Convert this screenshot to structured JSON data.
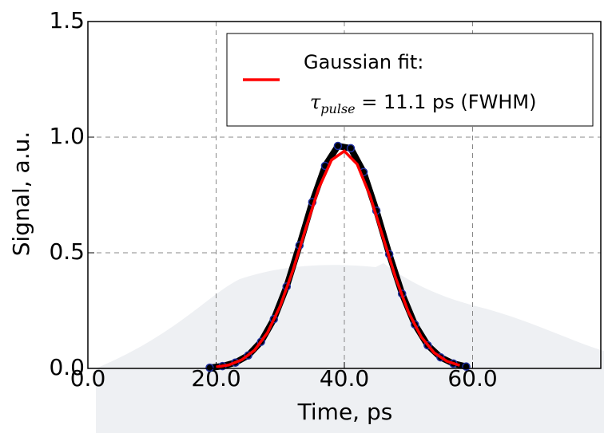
{
  "chart_data": {
    "type": "line",
    "xlabel": "Time, ps",
    "ylabel": "Signal, a.u.",
    "xlim": [
      0,
      80
    ],
    "ylim": [
      0,
      1.5
    ],
    "xticks": [
      {
        "value": 0,
        "label": "0.0"
      },
      {
        "value": 20,
        "label": "20.0"
      },
      {
        "value": 40,
        "label": "40.0"
      },
      {
        "value": 60,
        "label": "60.0"
      }
    ],
    "yticks": [
      {
        "value": 0,
        "label": "0.0"
      },
      {
        "value": 0.5,
        "label": "0.5"
      },
      {
        "value": 1,
        "label": "1.0"
      },
      {
        "value": 1.5,
        "label": "1.5"
      }
    ],
    "grid": true,
    "legend": "upper right",
    "series": [
      {
        "kind": "scatter",
        "color": "#000000",
        "edgecolor": "#1f2fa0",
        "x": [
          19,
          21,
          23,
          25,
          27,
          29,
          31,
          33,
          35,
          37,
          39,
          41,
          43,
          45,
          47,
          49,
          51,
          53,
          55,
          57,
          59
        ],
        "values": [
          0.003,
          0.01,
          0.025,
          0.056,
          0.115,
          0.213,
          0.354,
          0.532,
          0.719,
          0.876,
          0.962,
          0.952,
          0.849,
          0.682,
          0.494,
          0.323,
          0.19,
          0.1,
          0.048,
          0.021,
          0.008
        ]
      },
      {
        "kind": "line",
        "name": "Gaussian fit:",
        "color": "#ff0000",
        "x": [
          20,
          22,
          24,
          26,
          28,
          30,
          32,
          34,
          36,
          38,
          40,
          42,
          44,
          46,
          48,
          50,
          52,
          54,
          56,
          58
        ],
        "values": [
          0.006,
          0.015,
          0.037,
          0.079,
          0.154,
          0.27,
          0.426,
          0.607,
          0.779,
          0.901,
          0.94,
          0.883,
          0.747,
          0.57,
          0.392,
          0.243,
          0.136,
          0.068,
          0.031,
          0.013
        ]
      }
    ],
    "annotation": {
      "symbol": "τ",
      "subscript": "pulse",
      "text": " = 11.1 ps (FWHM)"
    }
  }
}
